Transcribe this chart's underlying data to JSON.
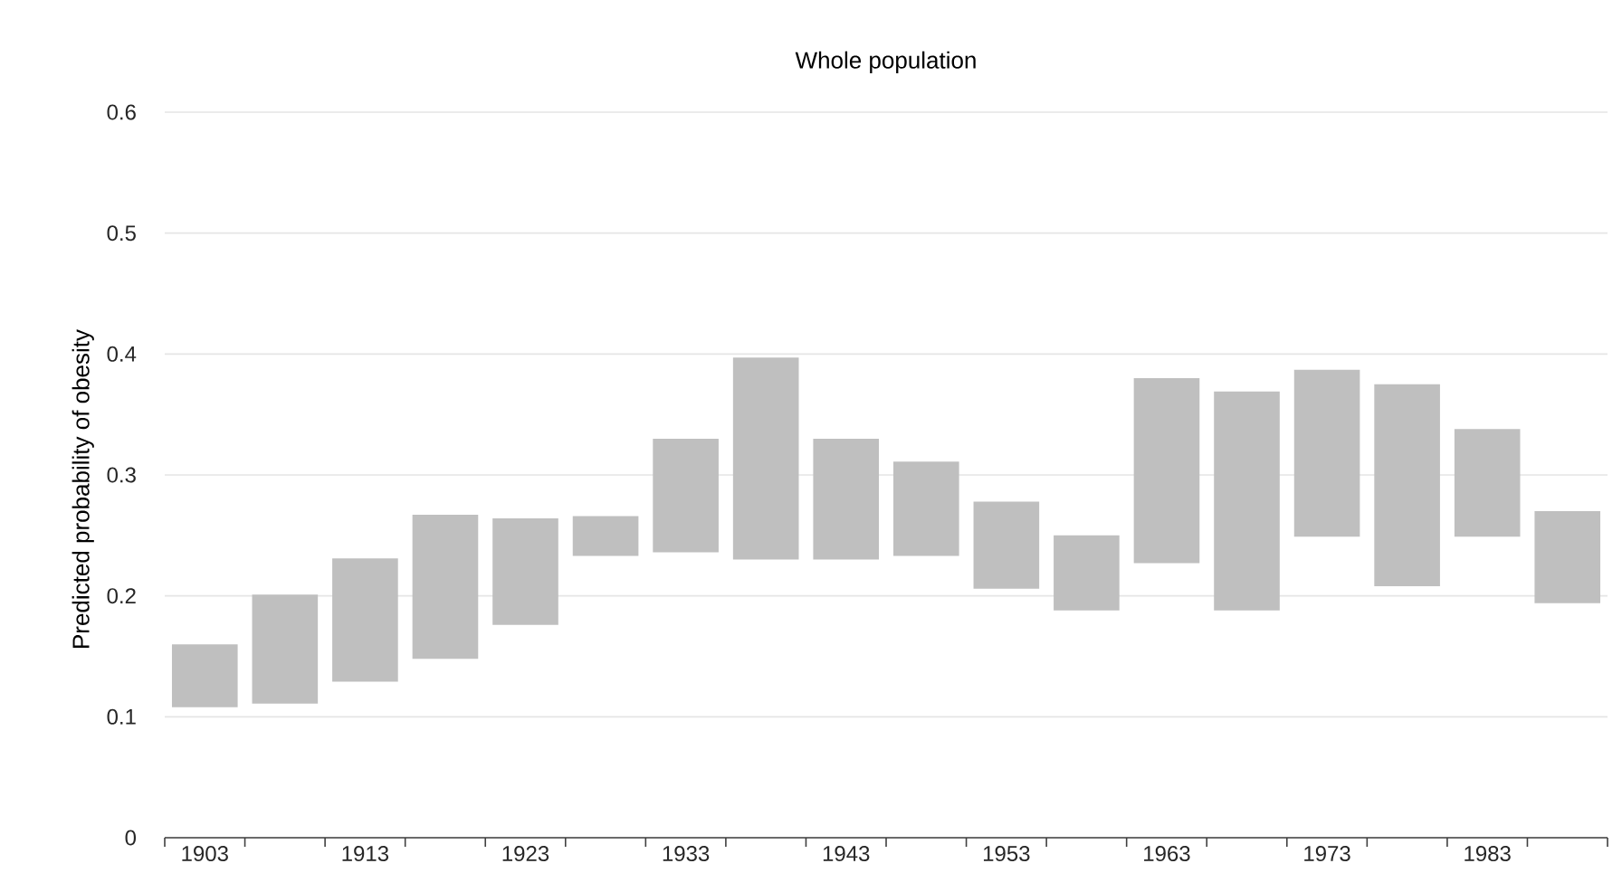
{
  "chart_data": {
    "type": "bar",
    "title": "Whole population",
    "ylabel": "Predicted probability of obesity",
    "categories": [
      "1903",
      null,
      "1913",
      null,
      "1923",
      null,
      "1933",
      null,
      "1943",
      null,
      "1953",
      null,
      "1963",
      null,
      "1973",
      null,
      "1983",
      null
    ],
    "base": [
      0.108,
      0.111,
      0.129,
      0.148,
      0.176,
      0.233,
      0.236,
      0.23,
      0.23,
      0.233,
      0.206,
      0.188,
      0.227,
      0.188,
      0.249,
      0.208,
      0.249,
      0.194
    ],
    "values": [
      0.052,
      0.09,
      0.102,
      0.119,
      0.088,
      0.033,
      0.094,
      0.167,
      0.1,
      0.078,
      0.072,
      0.062,
      0.153,
      0.181,
      0.138,
      0.167,
      0.089,
      0.076
    ],
    "color": "#bfbfbf",
    "ylim": [
      0,
      0.6
    ],
    "yticks": [
      0,
      0.1,
      0.2,
      0.3,
      0.4,
      0.5,
      0.6
    ],
    "grid": "y"
  }
}
